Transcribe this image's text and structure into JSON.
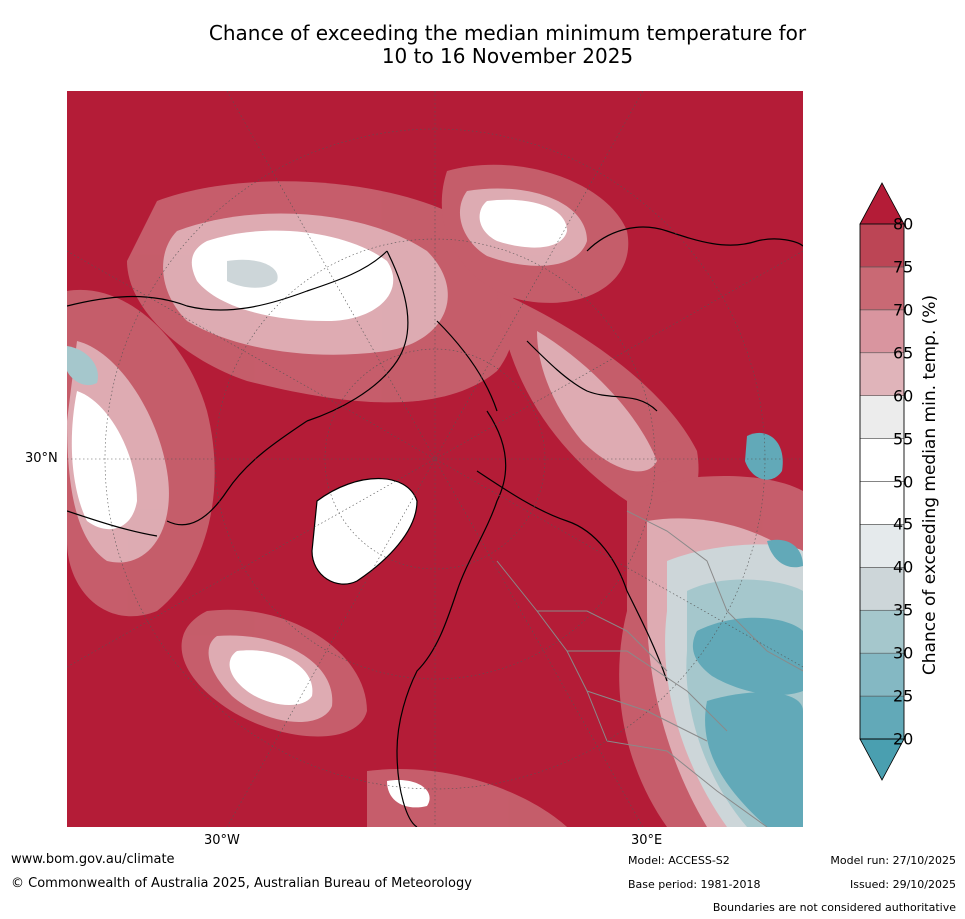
{
  "title": {
    "line1": "Chance of exceeding the median minimum temperature for",
    "line2": "10 to 16 November 2025"
  },
  "map": {
    "projection": "north-polar",
    "lat_label": "30°N",
    "lon_labels": [
      "30°W",
      "30°E"
    ],
    "base_color": "#b41c37"
  },
  "colorbar": {
    "title": "Chance of exceeding median min. temp. (%)",
    "ticks": [
      "20",
      "25",
      "30",
      "35",
      "40",
      "45",
      "50",
      "55",
      "60",
      "65",
      "70",
      "75",
      "80"
    ],
    "colors": [
      "#62a9b8",
      "#84b8c3",
      "#a5c7cc",
      "#cdd6d9",
      "#e5eaec",
      "#ffffff",
      "#ffffff",
      "#ececec",
      "#e0b4ba",
      "#d9959f",
      "#c96974",
      "#bc4555"
    ],
    "under_color": "#4a9fb0",
    "over_color": "#b41c37"
  },
  "footer": {
    "url": "www.bom.gov.au/climate",
    "copyright": "© Commonwealth of Australia 2025, Australian Bureau of Meteorology",
    "model": "Model: ACCESS-S2",
    "base_period": "Base period: 1981-2018",
    "model_run": "Model run: 27/10/2025",
    "issued": "Issued: 29/10/2025",
    "disclaimer": "Boundaries are not considered authoritative"
  }
}
